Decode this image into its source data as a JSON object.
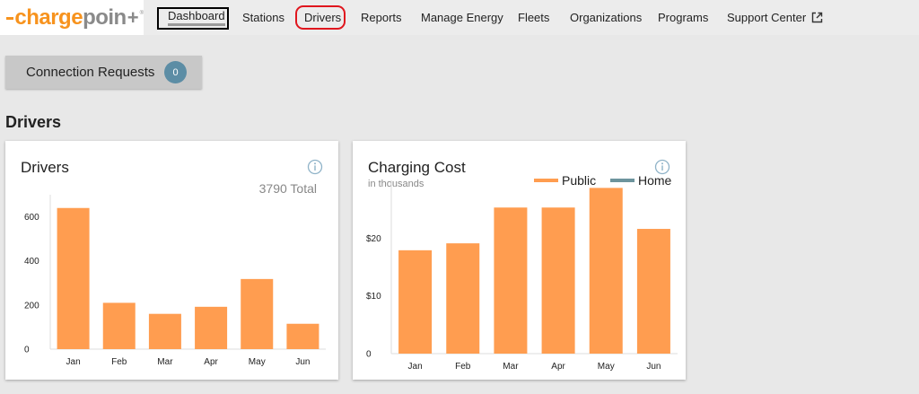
{
  "brand": {
    "logo_main": "chargepoin",
    "logo_plus": "+",
    "logo_dash": "—",
    "colors": {
      "orange": "#f7931e",
      "gray": "#8a8a8a"
    }
  },
  "nav": {
    "dashboard": "Dashboard",
    "stations": "Stations",
    "drivers": "Drivers",
    "reports": "Reports",
    "manage_energy": "Manage Energy",
    "fleets": "Fleets",
    "organizations": "Organizations",
    "programs": "Programs",
    "support_center": "Support Center",
    "support_center_icon": "external-link-icon"
  },
  "connection_requests": {
    "label": "Connection Requests",
    "count": "0"
  },
  "section_title": "Drivers",
  "drivers_card": {
    "title": "Drivers",
    "total": "3790 Total",
    "info_icon": "info-icon"
  },
  "cost_card": {
    "title": "Charging Cost",
    "subtitle": "in thousands",
    "info_icon": "info-icon",
    "legend": {
      "public": "Public",
      "home": "Home"
    }
  },
  "chart_data": [
    {
      "type": "bar",
      "categories": [
        "Jan",
        "Feb",
        "Mar",
        "Apr",
        "May",
        "Jun"
      ],
      "values": [
        640,
        210,
        160,
        192,
        318,
        115
      ],
      "ylim": [
        0,
        700
      ],
      "yticks": [
        0,
        200,
        400,
        600
      ],
      "ytick_labels": [
        "0",
        "200",
        "400",
        "600"
      ],
      "color": "#ff9d50"
    },
    {
      "type": "bar",
      "categories": [
        "Jan",
        "Feb",
        "Mar",
        "Apr",
        "May",
        "Jun"
      ],
      "series": [
        {
          "name": "Public",
          "values": [
            17.9,
            19.1,
            25.3,
            25.3,
            28.7,
            21.6
          ],
          "color": "#ff9d50"
        },
        {
          "name": "Home",
          "values": [
            0,
            0,
            0,
            0,
            0,
            0
          ],
          "color": "#6d949d"
        }
      ],
      "ylim": [
        0,
        30
      ],
      "yticks": [
        0,
        10,
        20
      ],
      "ytick_labels": [
        "0",
        "$10",
        "$20"
      ]
    }
  ]
}
